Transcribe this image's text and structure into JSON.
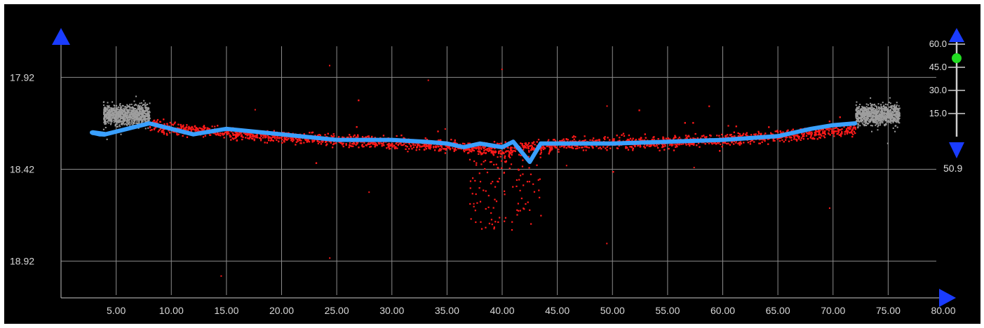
{
  "chart_data": {
    "type": "scatter",
    "title": "",
    "xlabel": "",
    "ylabel": "",
    "xlim": [
      0,
      80
    ],
    "ylim": [
      17.72,
      19.12
    ],
    "y_inverted": true,
    "grid": true,
    "x_ticks": [
      "5.00",
      "10.00",
      "15.00",
      "20.00",
      "25.00",
      "30.00",
      "35.00",
      "40.00",
      "45.00",
      "50.00",
      "55.00",
      "60.00",
      "65.00",
      "70.00",
      "75.00",
      "80.00"
    ],
    "x_tick_values": [
      5,
      10,
      15,
      20,
      25,
      30,
      35,
      40,
      45,
      50,
      55,
      60,
      65,
      70,
      75,
      80
    ],
    "y_ticks": [
      "17.92",
      "18.42",
      "18.92"
    ],
    "y_tick_values": [
      17.92,
      18.42,
      18.92
    ],
    "series": [
      {
        "color": "#9e9e9e",
        "ranges": [
          [
            3.8,
            8.0
          ],
          [
            72.0,
            76.0
          ]
        ],
        "center": 18.12,
        "spread": 0.14
      },
      {
        "color": "#ff1a1a",
        "range": [
          8.0,
          72.0
        ],
        "center_points": [
          [
            8,
            18.18
          ],
          [
            15,
            18.22
          ],
          [
            25,
            18.26
          ],
          [
            35,
            18.29
          ],
          [
            40,
            18.31
          ],
          [
            45,
            18.28
          ],
          [
            55,
            18.27
          ],
          [
            65,
            18.24
          ],
          [
            72,
            18.2
          ]
        ],
        "spread": 0.1,
        "dip": {
          "x_range": [
            37,
            43.5
          ],
          "y_max": 18.75
        }
      },
      {
        "color": "#3aa0ff",
        "x": [
          2.8,
          3.5,
          4.0,
          8.0,
          10.0,
          12.0,
          15.0,
          20.0,
          25.0,
          30.0,
          33.0,
          35.0,
          36.5,
          38.0,
          40.0,
          41.0,
          42.5,
          43.5,
          45.0,
          50.0,
          55.0,
          60.0,
          65.0,
          68.0,
          70.0,
          72.0
        ],
        "y": [
          18.22,
          18.23,
          18.23,
          18.17,
          18.2,
          18.23,
          18.2,
          18.23,
          18.26,
          18.26,
          18.27,
          18.28,
          18.3,
          18.28,
          18.3,
          18.27,
          18.38,
          18.28,
          18.28,
          18.28,
          18.27,
          18.26,
          18.24,
          18.2,
          18.18,
          18.17
        ]
      }
    ]
  },
  "slider": {
    "labels": [
      "60.0",
      "45.0",
      "30.0",
      "15.0"
    ],
    "label_values": [
      60,
      45,
      30,
      15
    ],
    "range": [
      0,
      65
    ],
    "knob_value": 50.9,
    "readout": "50.9",
    "knob_color": "#22dd22",
    "arrow_color": "#1a3cff"
  },
  "colors": {
    "background": "#000000",
    "grid": "#8c8c8c",
    "axis_arrows": "#1a3cff"
  }
}
